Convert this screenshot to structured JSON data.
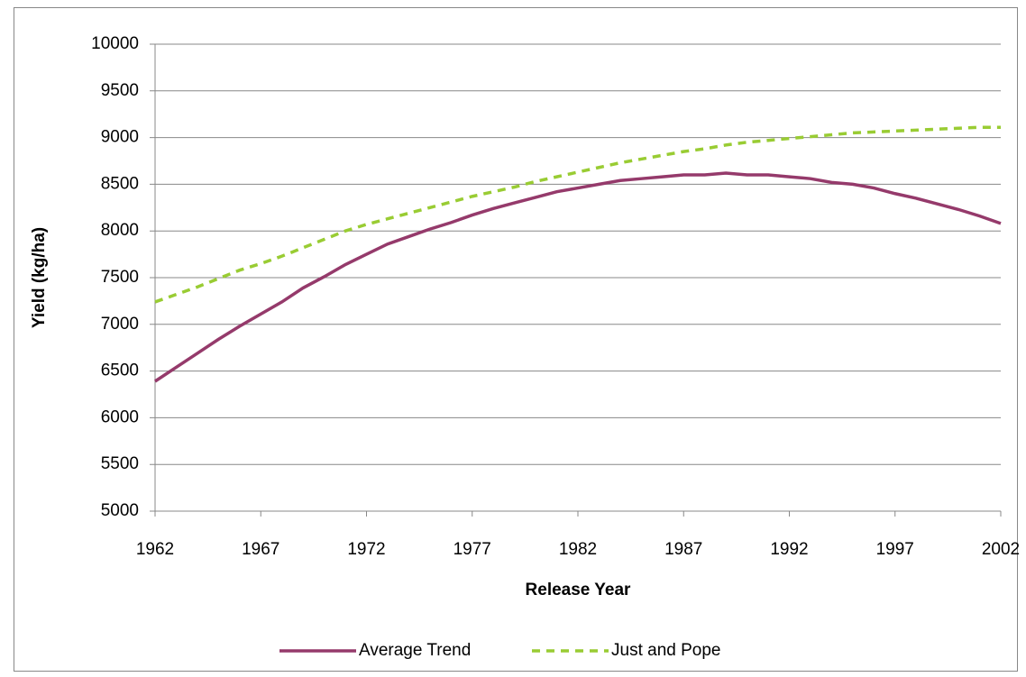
{
  "chart_data": {
    "type": "line",
    "x_label": "Release Year",
    "y_label": "Yield (kg/ha)",
    "x": [
      1962,
      1963,
      1964,
      1965,
      1966,
      1967,
      1968,
      1969,
      1970,
      1971,
      1972,
      1973,
      1974,
      1975,
      1976,
      1977,
      1978,
      1979,
      1980,
      1981,
      1982,
      1983,
      1984,
      1985,
      1986,
      1987,
      1988,
      1989,
      1990,
      1991,
      1992,
      1993,
      1994,
      1995,
      1996,
      1997,
      1998,
      1999,
      2000,
      2001,
      2002
    ],
    "series": [
      {
        "name": "Average Trend",
        "color": "#953a6b",
        "dashed": false,
        "values": [
          6390,
          6540,
          6690,
          6840,
          6980,
          7110,
          7240,
          7390,
          7510,
          7640,
          7750,
          7860,
          7940,
          8020,
          8090,
          8170,
          8240,
          8300,
          8360,
          8420,
          8460,
          8500,
          8540,
          8560,
          8580,
          8600,
          8600,
          8620,
          8600,
          8600,
          8580,
          8560,
          8520,
          8500,
          8460,
          8400,
          8350,
          8290,
          8230,
          8160,
          8080
        ]
      },
      {
        "name": "Just and Pope",
        "color": "#99cc33",
        "dashed": true,
        "values": [
          7240,
          7320,
          7400,
          7490,
          7580,
          7650,
          7730,
          7820,
          7910,
          8000,
          8070,
          8130,
          8190,
          8250,
          8310,
          8370,
          8420,
          8470,
          8530,
          8580,
          8630,
          8680,
          8730,
          8770,
          8810,
          8850,
          8880,
          8920,
          8950,
          8970,
          8990,
          9010,
          9030,
          9050,
          9060,
          9070,
          9080,
          9090,
          9100,
          9110,
          9110
        ]
      }
    ],
    "xlim": [
      1962,
      2002
    ],
    "xticks": [
      1962,
      1967,
      1972,
      1977,
      1982,
      1987,
      1992,
      1997,
      2002
    ],
    "ylim": [
      5000,
      10000
    ],
    "yticks": [
      5000,
      5500,
      6000,
      6500,
      7000,
      7500,
      8000,
      8500,
      9000,
      9500,
      10000
    ],
    "grid": true,
    "legend": "bottom"
  }
}
